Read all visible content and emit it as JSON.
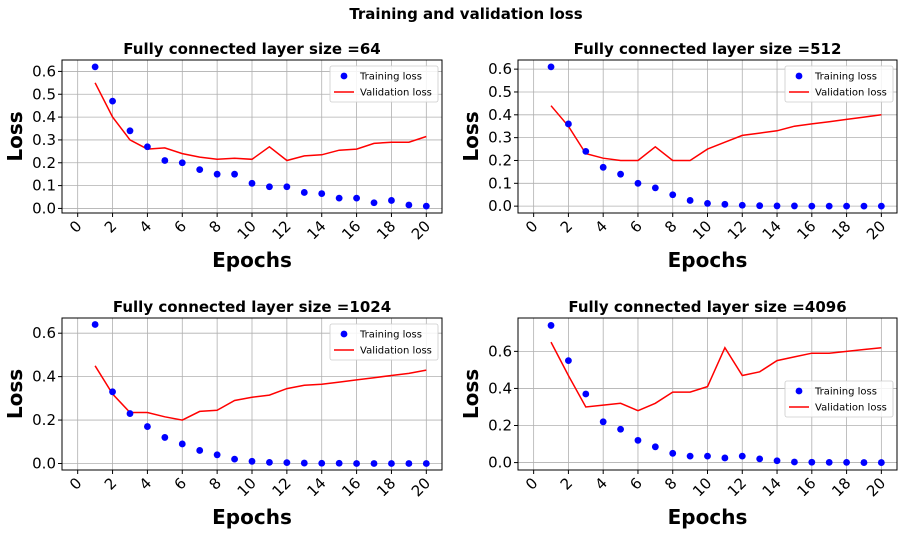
{
  "figure": {
    "title": "Training and validation loss"
  },
  "colors": {
    "training": "#0000ff",
    "validation": "#ff0000",
    "grid": "#b0b0b0"
  },
  "chart_data": [
    {
      "type": "line",
      "title": "Fully connected layer size =64",
      "xlabel": "Epochs",
      "ylabel": "Loss",
      "xlim": [
        0,
        20
      ],
      "xticks": [
        0,
        2,
        4,
        6,
        8,
        10,
        12,
        14,
        16,
        18,
        20
      ],
      "ylim": [
        -0.02,
        0.65
      ],
      "yticks": [
        0.0,
        0.1,
        0.2,
        0.3,
        0.4,
        0.5,
        0.6
      ],
      "ytick_labels": [
        "0.0",
        "0.1",
        "0.2",
        "0.3",
        "0.4",
        "0.5",
        "0.6"
      ],
      "grid": true,
      "legend_position": "top-right",
      "x": [
        1,
        2,
        3,
        4,
        5,
        6,
        7,
        8,
        9,
        10,
        11,
        12,
        13,
        14,
        15,
        16,
        17,
        18,
        19,
        20
      ],
      "series": [
        {
          "name": "Training loss",
          "style": "scatter",
          "values": [
            0.62,
            0.47,
            0.34,
            0.27,
            0.21,
            0.2,
            0.17,
            0.15,
            0.15,
            0.11,
            0.095,
            0.095,
            0.07,
            0.065,
            0.045,
            0.045,
            0.025,
            0.035,
            0.015,
            0.01
          ]
        },
        {
          "name": "Validation loss",
          "style": "line",
          "values": [
            0.55,
            0.4,
            0.3,
            0.26,
            0.265,
            0.24,
            0.225,
            0.215,
            0.22,
            0.215,
            0.27,
            0.21,
            0.23,
            0.235,
            0.255,
            0.26,
            0.285,
            0.29,
            0.29,
            0.315
          ]
        }
      ]
    },
    {
      "type": "line",
      "title": "Fully connected layer size =512",
      "xlabel": "Epochs",
      "ylabel": "Loss",
      "xlim": [
        0,
        20
      ],
      "xticks": [
        0,
        2,
        4,
        6,
        8,
        10,
        12,
        14,
        16,
        18,
        20
      ],
      "ylim": [
        -0.03,
        0.64
      ],
      "yticks": [
        0.0,
        0.1,
        0.2,
        0.3,
        0.4,
        0.5,
        0.6
      ],
      "ytick_labels": [
        "0.0",
        "0.1",
        "0.2",
        "0.3",
        "0.4",
        "0.5",
        "0.6"
      ],
      "grid": true,
      "legend_position": "top-right",
      "x": [
        1,
        2,
        3,
        4,
        5,
        6,
        7,
        8,
        9,
        10,
        11,
        12,
        13,
        14,
        15,
        16,
        17,
        18,
        19,
        20
      ],
      "series": [
        {
          "name": "Training loss",
          "style": "scatter",
          "values": [
            0.61,
            0.36,
            0.24,
            0.17,
            0.14,
            0.1,
            0.08,
            0.05,
            0.025,
            0.012,
            0.008,
            0.004,
            0.002,
            0.001,
            0.001,
            0.0,
            0.0,
            0.0,
            0.0,
            0.0
          ]
        },
        {
          "name": "Validation loss",
          "style": "line",
          "values": [
            0.44,
            0.35,
            0.23,
            0.21,
            0.2,
            0.2,
            0.26,
            0.2,
            0.2,
            0.25,
            0.28,
            0.31,
            0.32,
            0.33,
            0.35,
            0.36,
            0.37,
            0.38,
            0.39,
            0.4
          ]
        }
      ]
    },
    {
      "type": "line",
      "title": "Fully connected layer size =1024",
      "xlabel": "Epochs",
      "ylabel": "Loss",
      "xlim": [
        0,
        20
      ],
      "xticks": [
        0,
        2,
        4,
        6,
        8,
        10,
        12,
        14,
        16,
        18,
        20
      ],
      "ylim": [
        -0.03,
        0.67
      ],
      "yticks": [
        0.0,
        0.2,
        0.4,
        0.6
      ],
      "ytick_labels": [
        "0.0",
        "0.2",
        "0.4",
        "0.6"
      ],
      "grid": true,
      "legend_position": "top-right",
      "x": [
        1,
        2,
        3,
        4,
        5,
        6,
        7,
        8,
        9,
        10,
        11,
        12,
        13,
        14,
        15,
        16,
        17,
        18,
        19,
        20
      ],
      "series": [
        {
          "name": "Training loss",
          "style": "scatter",
          "values": [
            0.64,
            0.33,
            0.23,
            0.17,
            0.12,
            0.09,
            0.06,
            0.04,
            0.02,
            0.01,
            0.005,
            0.004,
            0.002,
            0.001,
            0.001,
            0.0,
            0.0,
            0.0,
            0.0,
            0.0
          ]
        },
        {
          "name": "Validation loss",
          "style": "line",
          "values": [
            0.45,
            0.32,
            0.235,
            0.235,
            0.215,
            0.2,
            0.24,
            0.245,
            0.29,
            0.305,
            0.315,
            0.345,
            0.36,
            0.365,
            0.375,
            0.385,
            0.395,
            0.405,
            0.415,
            0.43
          ]
        }
      ]
    },
    {
      "type": "line",
      "title": "Fully connected layer size =4096",
      "xlabel": "Epochs",
      "ylabel": "Loss",
      "xlim": [
        0,
        20
      ],
      "xticks": [
        0,
        2,
        4,
        6,
        8,
        10,
        12,
        14,
        16,
        18,
        20
      ],
      "ylim": [
        -0.04,
        0.78
      ],
      "yticks": [
        0.0,
        0.2,
        0.4,
        0.6
      ],
      "ytick_labels": [
        "0.0",
        "0.2",
        "0.4",
        "0.6"
      ],
      "grid": true,
      "legend_position": "center-right",
      "x": [
        1,
        2,
        3,
        4,
        5,
        6,
        7,
        8,
        9,
        10,
        11,
        12,
        13,
        14,
        15,
        16,
        17,
        18,
        19,
        20
      ],
      "series": [
        {
          "name": "Training loss",
          "style": "scatter",
          "values": [
            0.74,
            0.55,
            0.37,
            0.22,
            0.18,
            0.12,
            0.085,
            0.05,
            0.035,
            0.035,
            0.025,
            0.035,
            0.02,
            0.01,
            0.003,
            0.002,
            0.001,
            0.001,
            0.0,
            0.0
          ]
        },
        {
          "name": "Validation loss",
          "style": "line",
          "values": [
            0.65,
            0.47,
            0.3,
            0.31,
            0.32,
            0.28,
            0.32,
            0.38,
            0.38,
            0.41,
            0.62,
            0.47,
            0.49,
            0.55,
            0.57,
            0.59,
            0.59,
            0.6,
            0.61,
            0.62
          ]
        }
      ]
    }
  ]
}
